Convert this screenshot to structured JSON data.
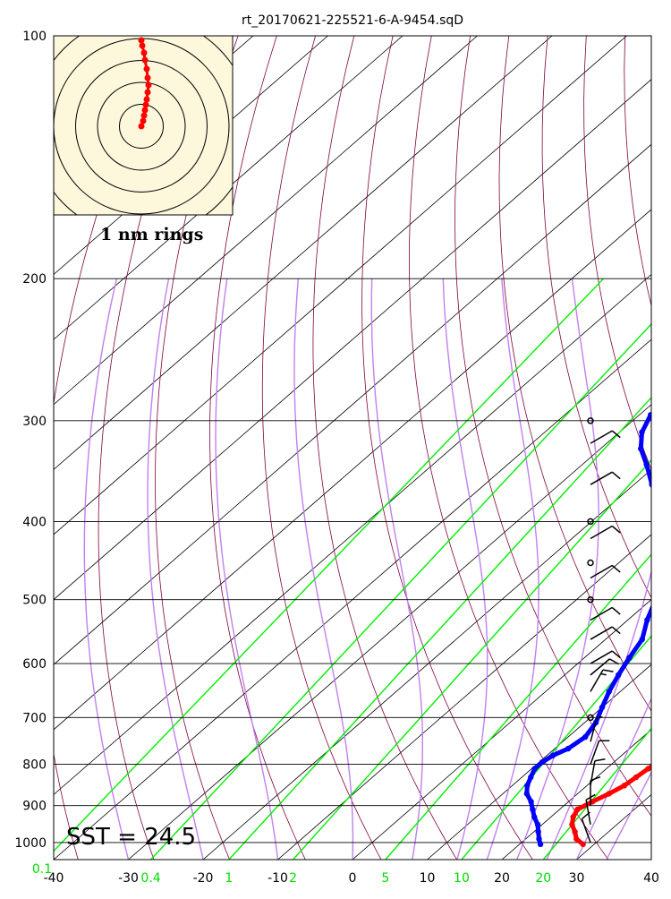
{
  "chart_data": {
    "type": "skew-t",
    "title": "rt_20170621-225521-6-A-9454.sqD",
    "y_axis": {
      "scale": "log",
      "range": [
        1050,
        100
      ],
      "unit_label": "",
      "ticks": [
        100,
        200,
        300,
        400,
        500,
        600,
        700,
        800,
        900,
        1000
      ]
    },
    "x_axis": {
      "range": [
        -40,
        40
      ],
      "ticks": [
        -40,
        -30,
        -20,
        -10,
        0,
        10,
        20,
        30,
        40
      ]
    },
    "mixing_ratio_labels": [
      "0.1",
      "0.4",
      "1",
      "2",
      "5",
      "10",
      "20"
    ],
    "mixing_ratio_values": [
      0.1,
      0.4,
      1,
      2,
      5,
      10,
      20
    ],
    "annotation": "SST = 24.5",
    "inset": {
      "label": "1 nm rings",
      "ring_count": 5,
      "background": "#fdf7dc"
    },
    "colors": {
      "temperature": "#ff0000",
      "dewpoint": "#0000ff",
      "isotherm": "#000000",
      "dry_adiabat": "#800040",
      "moist_adiabat": "#c080f0",
      "mixing_ratio": "#00ee00",
      "wind_barb": "#000000"
    },
    "series": [
      {
        "name": "Temperature",
        "points": [
          [
            1005,
            28.5
          ],
          [
            990,
            26.8
          ],
          [
            970,
            25.5
          ],
          [
            950,
            24.0
          ],
          [
            930,
            23.0
          ],
          [
            910,
            22.4
          ],
          [
            890,
            23.2
          ],
          [
            870,
            24.2
          ],
          [
            850,
            25.0
          ],
          [
            830,
            25.3
          ],
          [
            810,
            25.6
          ],
          [
            790,
            26.0
          ],
          [
            770,
            26.0
          ],
          [
            750,
            25.6
          ],
          [
            730,
            24.8
          ],
          [
            710,
            23.4
          ],
          [
            690,
            21.6
          ],
          [
            670,
            20.6
          ],
          [
            650,
            20.3
          ],
          [
            620,
            20.6
          ],
          [
            590,
            20.6
          ],
          [
            560,
            20.3
          ],
          [
            530,
            19.6
          ],
          [
            500,
            18.8
          ],
          [
            470,
            17.8
          ],
          [
            445,
            16.6
          ],
          [
            420,
            15.8
          ],
          [
            400,
            14.6
          ],
          [
            380,
            13.6
          ],
          [
            360,
            12.4
          ],
          [
            345,
            11.0
          ],
          [
            330,
            9.4
          ],
          [
            315,
            7.8
          ],
          [
            300,
            6.8
          ],
          [
            285,
            5.3
          ],
          [
            270,
            4.0
          ]
        ]
      },
      {
        "name": "Dewpoint",
        "points": [
          [
            1005,
            22.8
          ],
          [
            990,
            21.8
          ],
          [
            970,
            20.6
          ],
          [
            950,
            19.4
          ],
          [
            930,
            17.8
          ],
          [
            910,
            16.4
          ],
          [
            890,
            15.0
          ],
          [
            870,
            13.2
          ],
          [
            850,
            12.0
          ],
          [
            830,
            11.2
          ],
          [
            810,
            10.4
          ],
          [
            795,
            10.4
          ],
          [
            780,
            10.8
          ],
          [
            765,
            11.8
          ],
          [
            740,
            12.3
          ],
          [
            710,
            11.5
          ],
          [
            680,
            10.0
          ],
          [
            650,
            8.5
          ],
          [
            620,
            7.2
          ],
          [
            590,
            6.0
          ],
          [
            560,
            4.9
          ],
          [
            530,
            2.6
          ],
          [
            500,
            0.6
          ],
          [
            470,
            -2.0
          ],
          [
            445,
            -4.6
          ],
          [
            420,
            -7.6
          ],
          [
            400,
            -10.0
          ],
          [
            380,
            -13.6
          ],
          [
            360,
            -17.6
          ],
          [
            340,
            -21.4
          ],
          [
            325,
            -24.6
          ],
          [
            310,
            -27.0
          ],
          [
            295,
            -28.5
          ],
          [
            285,
            -27.6
          ],
          [
            278,
            -24.5
          ],
          [
            273,
            -20.0
          ],
          [
            270,
            -16.5
          ]
        ]
      }
    ],
    "hodograph": [
      [
        0.0,
        0.0
      ],
      [
        0.1,
        -0.3
      ],
      [
        0.15,
        -0.6
      ],
      [
        0.2,
        -0.9
      ],
      [
        0.25,
        -1.2
      ],
      [
        0.3,
        -1.5
      ],
      [
        0.35,
        -1.9
      ],
      [
        0.4,
        -2.3
      ],
      [
        0.35,
        -2.7
      ],
      [
        0.3,
        -3.2
      ],
      [
        0.2,
        -3.7
      ],
      [
        0.15,
        -4.1
      ],
      [
        0.05,
        -4.5
      ],
      [
        0.0,
        -4.8
      ]
    ],
    "wind_barbs": [
      {
        "p": 1000,
        "dir": 340,
        "spd": 10
      },
      {
        "p": 950,
        "dir": 350,
        "spd": 10
      },
      {
        "p": 900,
        "dir": 0,
        "spd": 10
      },
      {
        "p": 850,
        "dir": 10,
        "spd": 10
      },
      {
        "p": 800,
        "dir": 20,
        "spd": 10
      },
      {
        "p": 750,
        "dir": 15,
        "spd": 5
      },
      {
        "p": 700,
        "dir": 0,
        "spd": 0
      },
      {
        "p": 650,
        "dir": 30,
        "spd": 15
      },
      {
        "p": 620,
        "dir": 50,
        "spd": 10
      },
      {
        "p": 600,
        "dir": 60,
        "spd": 10
      },
      {
        "p": 560,
        "dir": 60,
        "spd": 10
      },
      {
        "p": 530,
        "dir": 60,
        "spd": 10
      },
      {
        "p": 500,
        "dir": 0,
        "spd": 0
      },
      {
        "p": 470,
        "dir": 60,
        "spd": 10
      },
      {
        "p": 450,
        "dir": 0,
        "spd": 0
      },
      {
        "p": 420,
        "dir": 60,
        "spd": 10
      },
      {
        "p": 400,
        "dir": 0,
        "spd": 0
      },
      {
        "p": 360,
        "dir": 60,
        "spd": 10
      },
      {
        "p": 320,
        "dir": 60,
        "spd": 10
      },
      {
        "p": 300,
        "dir": 0,
        "spd": 0
      }
    ]
  }
}
